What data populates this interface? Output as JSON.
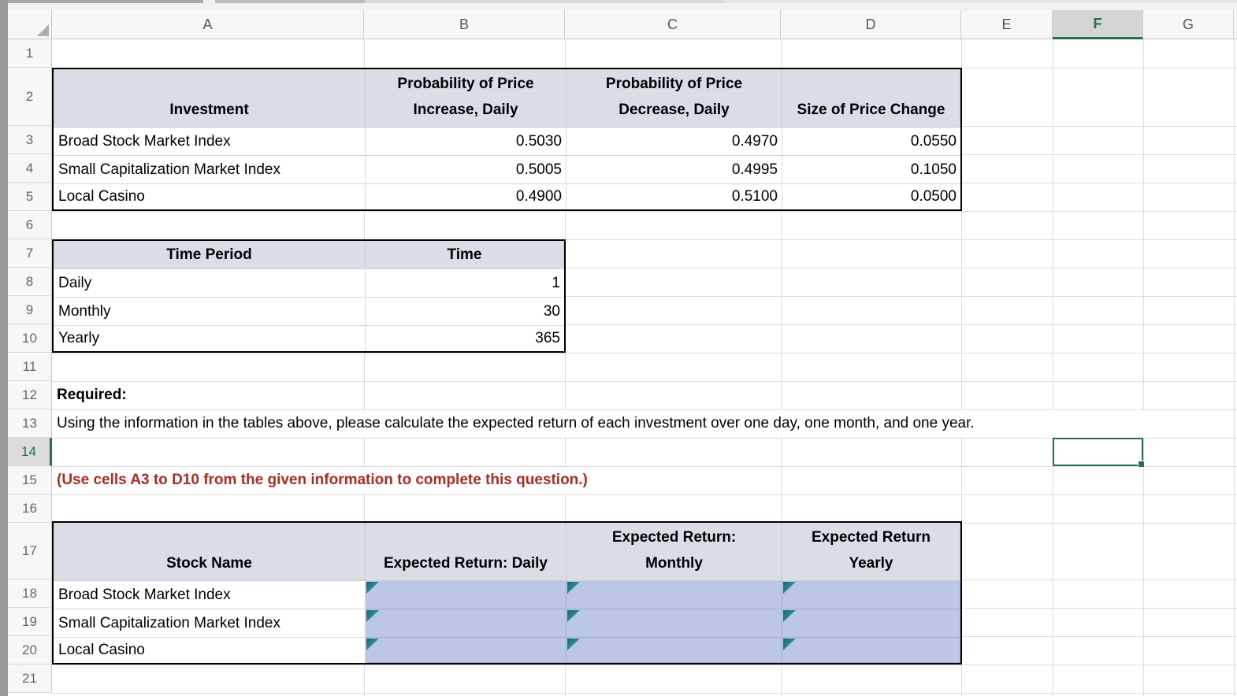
{
  "grid": {
    "columns": [
      "A",
      "B",
      "C",
      "D",
      "E",
      "F",
      "G"
    ],
    "rows": [
      "1",
      "2",
      "3",
      "4",
      "5",
      "6",
      "7",
      "8",
      "9",
      "10",
      "11",
      "12",
      "13",
      "14",
      "15",
      "16",
      "17",
      "18",
      "19",
      "20",
      "21"
    ],
    "selected_column": "F",
    "selected_row": "14"
  },
  "table1": {
    "headers": [
      "Investment",
      "Probability of Price\nIncrease, Daily",
      "Probability of Price\nDecrease, Daily",
      "Size of Price Change"
    ],
    "rows": [
      [
        "Broad Stock Market Index",
        "0.5030",
        "0.4970",
        "0.0550"
      ],
      [
        "Small Capitalization Market Index",
        "0.5005",
        "0.4995",
        "0.1050"
      ],
      [
        "Local Casino",
        "0.4900",
        "0.5100",
        "0.0500"
      ]
    ]
  },
  "table2": {
    "headers": [
      "Time Period",
      "Time"
    ],
    "rows": [
      [
        "Daily",
        "1"
      ],
      [
        "Monthly",
        "30"
      ],
      [
        "Yearly",
        "365"
      ]
    ]
  },
  "table3": {
    "headers": [
      "Stock Name",
      "Expected Return: Daily",
      "Expected Return:\nMonthly",
      "Expected Return\nYearly"
    ],
    "rows": [
      [
        "Broad Stock Market Index"
      ],
      [
        "Small Capitalization Market Index"
      ],
      [
        "Local Casino"
      ]
    ]
  },
  "texts": {
    "required": "Required:",
    "instruction": "Using the information in the tables above, please calculate the expected return of each investment over one day, one month, and one year.",
    "note": "(Use cells A3 to D10 from the given information to complete this question.)"
  },
  "colors": {
    "accent_green": "#217346",
    "note_red": "#ae2b23",
    "header_fill": "#d9dde6",
    "answer_fill": "#bbc7e4",
    "flag_teal": "#146a76"
  }
}
